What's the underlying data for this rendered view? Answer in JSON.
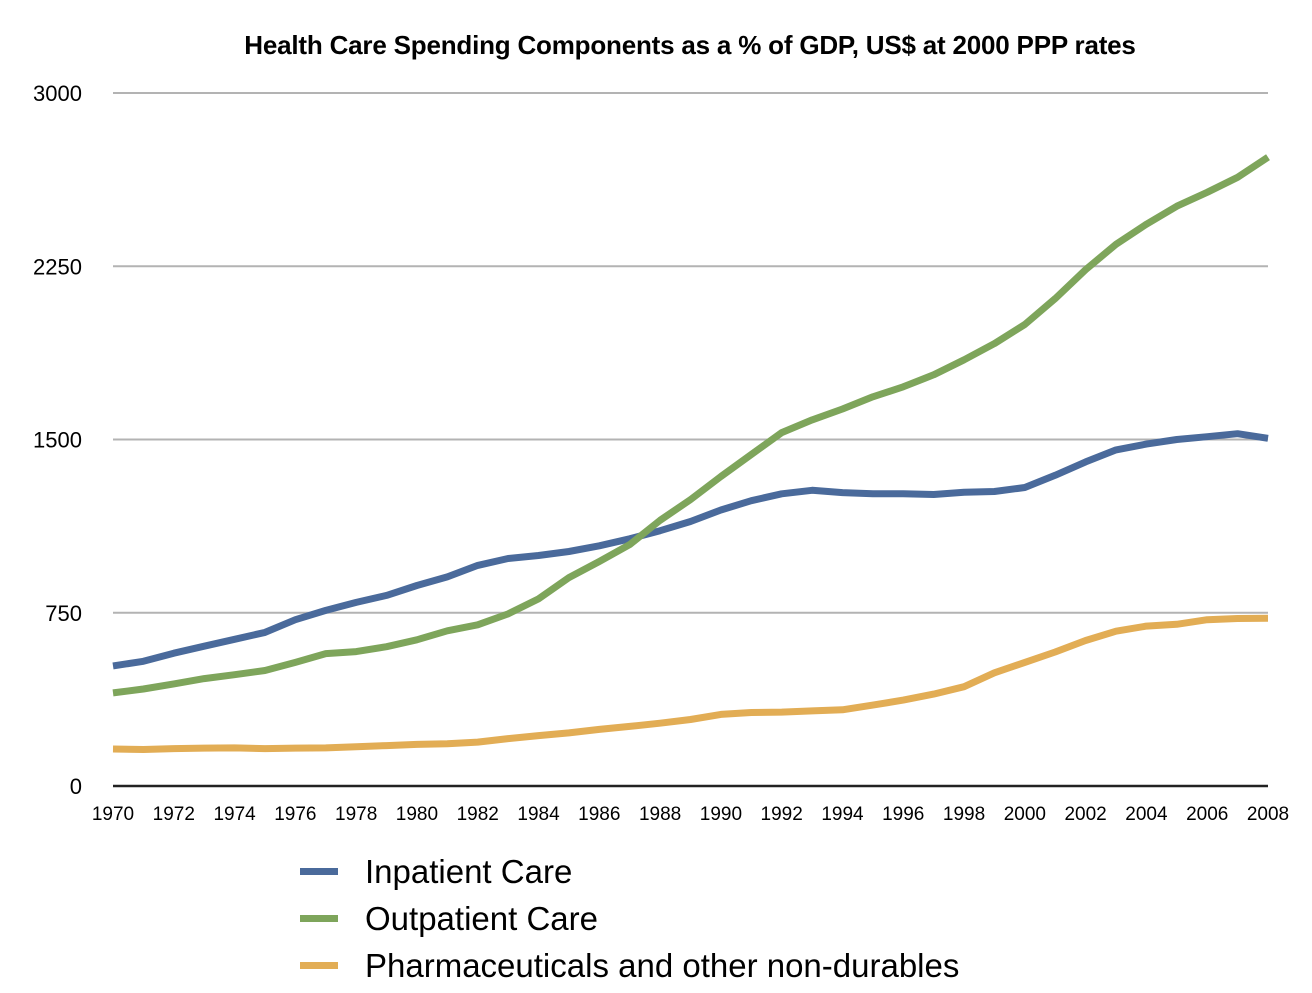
{
  "chart_data": {
    "type": "line",
    "title": "Health Care Spending Components as a % of GDP, US$ at 2000 PPP rates",
    "xlabel": "",
    "ylabel": "",
    "ylim": [
      0,
      3000
    ],
    "yticks": [
      "0",
      "750",
      "1500",
      "2250",
      "3000"
    ],
    "ytick_values": [
      0,
      750,
      1500,
      2250,
      3000
    ],
    "grid": true,
    "legend_position": "bottom",
    "x": [
      1970,
      1971,
      1972,
      1973,
      1974,
      1975,
      1976,
      1977,
      1978,
      1979,
      1980,
      1981,
      1982,
      1983,
      1984,
      1985,
      1986,
      1987,
      1988,
      1989,
      1990,
      1991,
      1992,
      1993,
      1994,
      1995,
      1996,
      1997,
      1998,
      1999,
      2000,
      2001,
      2002,
      2003,
      2004,
      2005,
      2006,
      2007,
      2008
    ],
    "xtick_labels": [
      "1970",
      "1972",
      "1974",
      "1976",
      "1978",
      "1980",
      "1982",
      "1984",
      "1986",
      "1988",
      "1990",
      "1992",
      "1994",
      "1996",
      "1998",
      "2000",
      "2002",
      "2004",
      "2006",
      "2008"
    ],
    "series": [
      {
        "name": "Inpatient Care",
        "color": "#4a6a9b",
        "values": [
          520,
          540,
          575,
          605,
          635,
          665,
          720,
          760,
          795,
          825,
          868,
          905,
          955,
          985,
          998,
          1015,
          1040,
          1070,
          1105,
          1145,
          1195,
          1235,
          1265,
          1280,
          1270,
          1265,
          1265,
          1262,
          1272,
          1275,
          1292,
          1345,
          1403,
          1455,
          1480,
          1500,
          1512,
          1525,
          1505
        ]
      },
      {
        "name": "Outpatient Care",
        "color": "#7ea55b",
        "values": [
          403,
          420,
          442,
          465,
          482,
          500,
          535,
          573,
          582,
          603,
          633,
          672,
          698,
          745,
          810,
          902,
          972,
          1045,
          1150,
          1240,
          1340,
          1435,
          1530,
          1585,
          1632,
          1685,
          1728,
          1780,
          1845,
          1915,
          1998,
          2110,
          2235,
          2345,
          2432,
          2510,
          2570,
          2635,
          2722
        ]
      },
      {
        "name": "Pharmaceuticals and other non-durables",
        "color": "#e2ad55",
        "values": [
          160,
          158,
          162,
          164,
          165,
          162,
          164,
          165,
          170,
          175,
          180,
          183,
          190,
          205,
          218,
          230,
          245,
          258,
          272,
          288,
          310,
          318,
          320,
          325,
          330,
          350,
          372,
          398,
          430,
          490,
          535,
          580,
          630,
          670,
          692,
          700,
          720,
          725,
          726
        ]
      }
    ]
  }
}
